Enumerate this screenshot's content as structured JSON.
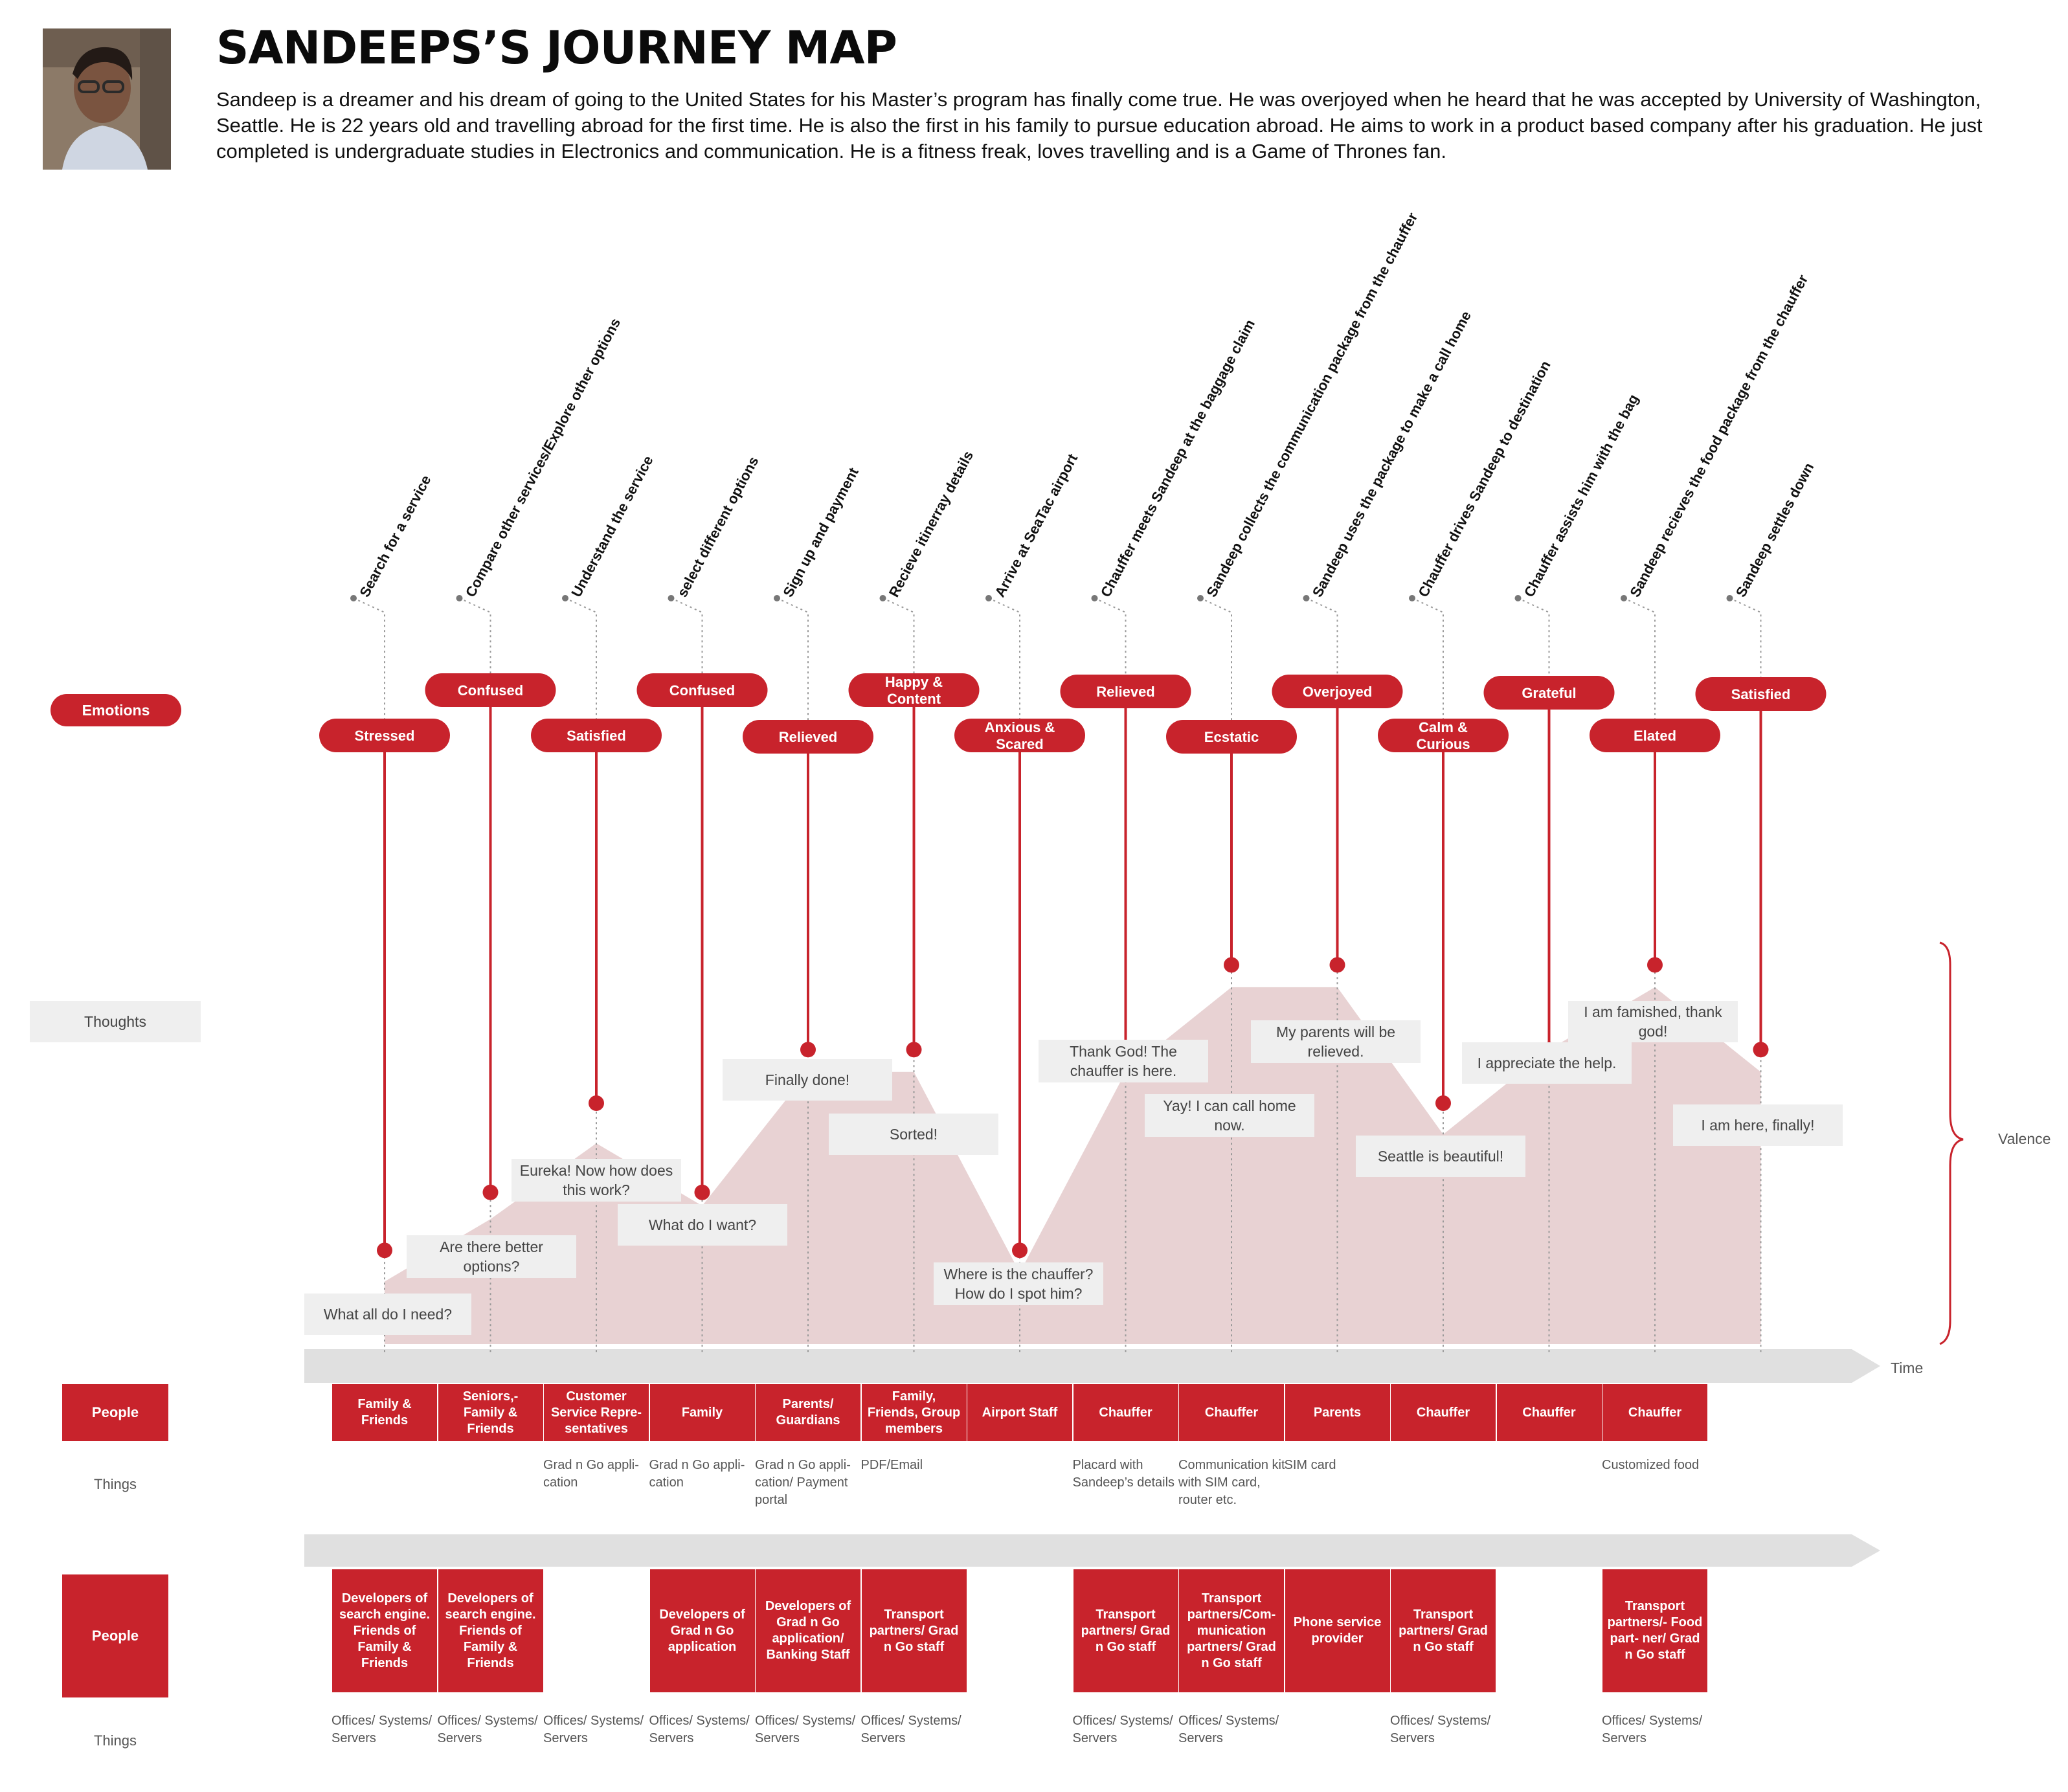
{
  "title": "SANDEEPS’S JOURNEY MAP",
  "description": "Sandeep is a dreamer and his dream of going to the United States for his Master’s program has finally come true. He was overjoyed when he heard that he was accepted by University of Washington, Seattle. He is 22 years old and travelling abroad for the first time. He is also the first in his family to pursue education abroad. He aims to work in a product based company after his graduation. He just completed is undergraduate studies in Electronics and communication. He is a fitness freak, loves travelling and is a Game of Thrones fan.",
  "colors": {
    "accent": "#c8232c",
    "area": "#e8d2d3",
    "label_bg": "#efefef",
    "timeline": "#e0e0e0"
  },
  "row_labels": {
    "emotions": "Emotions",
    "thoughts": "Thoughts",
    "valence": "Valence",
    "time": "Time",
    "people_1": "People",
    "things_1": "Things",
    "people_2": "People",
    "things_2": "Things"
  },
  "chart_data": {
    "type": "area",
    "title": "",
    "xlabel": "Time",
    "ylabel": "Valence",
    "stages": [
      "Search for a service",
      "Compare other services/Explore other options",
      "Understand the service",
      "select different options",
      "Sign up and payment",
      "Recieve itinerray details",
      "Arrive at SeaTac airport",
      "Chauffer meets Sandeep at the baggage claim",
      "Sandeep collects the communication package from the chauffer",
      "Sandeep uses the package to make a call home",
      "Chauffer drives Sandeep to destination",
      "Chauffer assists him with the bag",
      "Sandeep recieves the food package from the chauffer",
      "Sandeep settles down"
    ],
    "emotions": [
      "Stressed",
      "Confused",
      "Satisfied",
      "Confused",
      "Relieved",
      "Happy & Content",
      "Anxious & Scared",
      "Relieved",
      "Ecstatic",
      "Overjoyed",
      "Calm & Curious",
      "Grateful",
      "Elated",
      "Satisfied"
    ],
    "emotion_values": [
      0.21,
      0.34,
      0.54,
      0.34,
      0.66,
      0.66,
      0.21,
      0.66,
      0.85,
      0.85,
      0.54,
      0.66,
      0.85,
      0.66
    ],
    "area_values": [
      0.14,
      0.28,
      0.45,
      0.31,
      0.61,
      0.61,
      0.16,
      0.61,
      0.8,
      0.8,
      0.47,
      0.66,
      0.8,
      0.61
    ],
    "thoughts": [
      "What all do I need?",
      "Are there better options?",
      "Eureka! Now how does this work?",
      "What do I want?",
      "Finally done!",
      "Sorted!",
      "Where is the chauffer? How do I spot him?",
      "Thank God! The chauffer is here.",
      "Yay! I can call home now.",
      "My parents will be relieved.",
      "Seattle is beautiful!",
      "I appreciate the help.",
      "I am famished, thank god!",
      "I am here, finally!"
    ]
  },
  "frontstage": {
    "people": [
      "Family & Friends",
      "Seniors,- Family & Friends",
      "Customer Service Repre- sentatives",
      "Family",
      "Parents/ Guardians",
      "Family, Friends, Group members",
      "Airport Staff",
      "Chauffer",
      "Chauffer",
      "Parents",
      "Chauffer",
      "Chauffer",
      "Chauffer"
    ],
    "things": [
      "",
      "",
      "Grad n Go appli- cation",
      "Grad n Go appli- cation",
      "Grad n Go appli- cation/ Payment portal",
      "PDF/Email",
      "",
      "Placard with Sandeep’s details",
      "Communication kit with SIM card, router etc.",
      "SIM card",
      "",
      "",
      "Customized food"
    ]
  },
  "backstage": {
    "people": [
      "Developers of search engine. Friends of Family & Friends",
      "Developers of search engine. Friends of Family & Friends",
      "",
      "Developers of Grad n Go application",
      "Developers of Grad n Go application/ Banking Staff",
      "Transport partners/ Grad n Go staff",
      "",
      "Transport partners/ Grad n Go staff",
      "Transport partners/Com- munication partners/ Grad n Go staff",
      "Phone service provider",
      "Transport partners/ Grad n Go staff",
      "",
      "Transport partners/- Food part- ner/ Grad n Go staff"
    ],
    "things": [
      "Offices/ Systems/ Servers",
      "Offices/ Systems/ Servers",
      "Offices/ Systems/ Servers",
      "Offices/ Systems/ Servers",
      "Offices/ Systems/ Servers",
      "Offices/ Systems/ Servers",
      "",
      "Offices/ Systems/ Servers",
      "Offices/ Systems/ Servers",
      "",
      "Offices/ Systems/ Servers",
      "",
      "Offices/ Systems/ Servers"
    ]
  }
}
